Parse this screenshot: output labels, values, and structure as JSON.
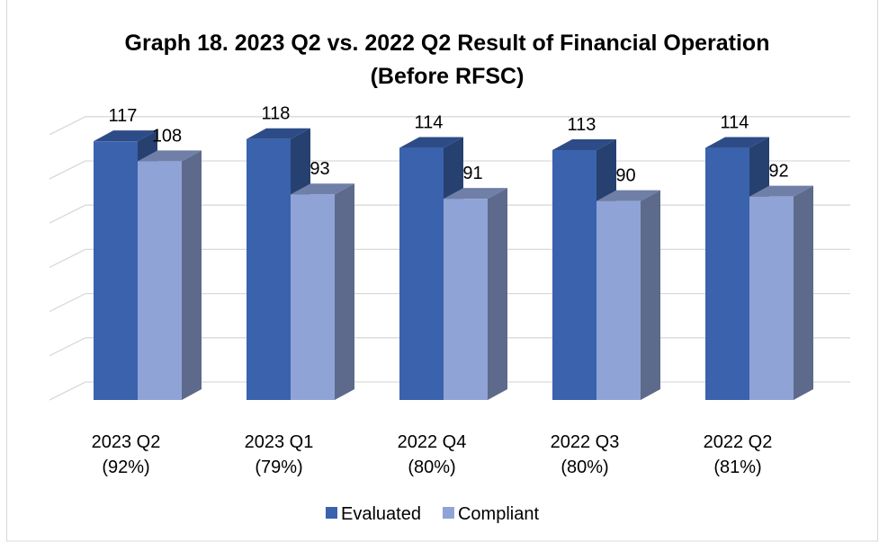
{
  "chart_data": {
    "type": "bar3d",
    "title": "Graph 18. 2023 Q2 vs. 2022 Q2  Result of Financial Operation (Before RFSC)",
    "categories": [
      "2023 Q2\n(92%)",
      "2023 Q1\n(79%)",
      "2022 Q4\n(80%)",
      "2022 Q3\n(80%)",
      "2022 Q2\n(81%)"
    ],
    "series": [
      {
        "name": "Evaluated",
        "color": "#3a62ad",
        "values": [
          117,
          118,
          114,
          113,
          114
        ]
      },
      {
        "name": "Compliant",
        "color": "#8fa3d6",
        "values": [
          108,
          93,
          91,
          90,
          92
        ]
      }
    ],
    "ylim": [
      0,
      120
    ],
    "yticks": [
      0,
      20,
      40,
      60,
      80,
      100,
      120
    ],
    "grid": true,
    "legend": "bottom"
  }
}
